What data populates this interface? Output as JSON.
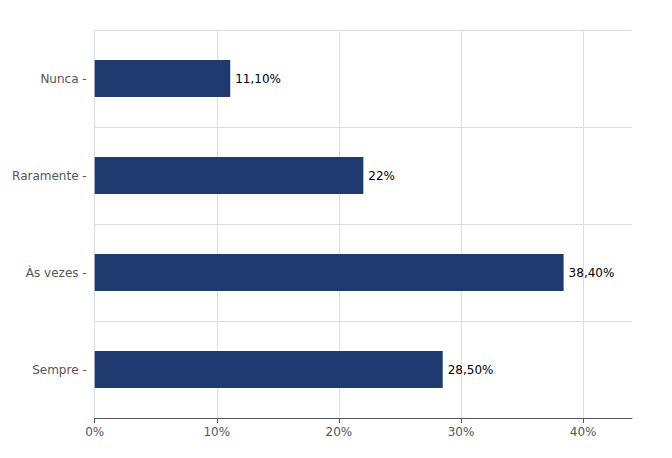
{
  "chart_data": {
    "type": "bar",
    "orientation": "horizontal",
    "categories": [
      "Sempre -",
      "Às vezes -",
      "Raramente -",
      "Nunca -"
    ],
    "values": [
      28.5,
      38.4,
      22.0,
      11.1
    ],
    "value_labels": [
      "28,50%",
      "38,40%",
      "22%",
      "11,10%"
    ],
    "data_labels": true,
    "color": "#1F3A6E",
    "xlim": [
      0,
      44
    ],
    "xticks": [
      {
        "value": 0,
        "label": "0%"
      },
      {
        "value": 10,
        "label": "10%"
      },
      {
        "value": 20,
        "label": "20%"
      },
      {
        "value": 30,
        "label": "30%"
      },
      {
        "value": 40,
        "label": "40%"
      }
    ],
    "grid": true
  }
}
